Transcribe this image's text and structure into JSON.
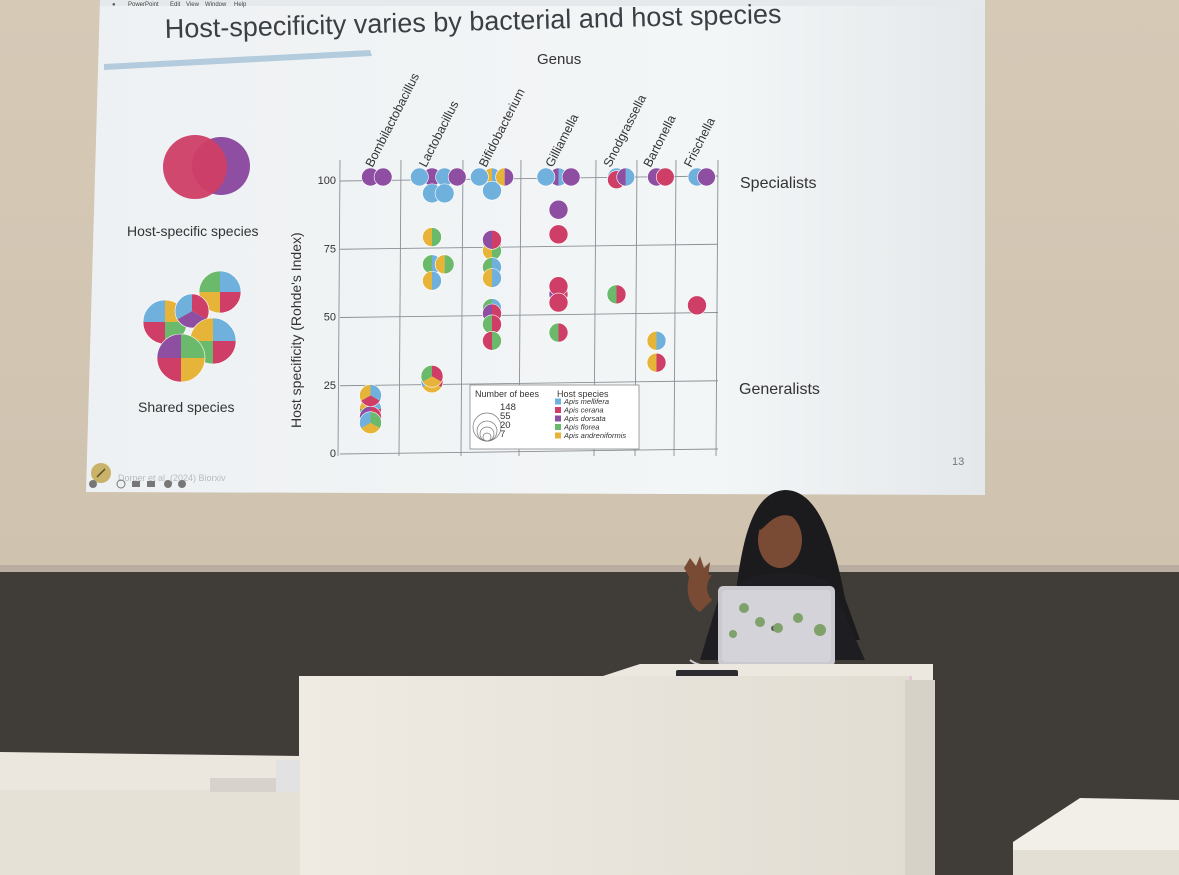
{
  "menubar": {
    "app": "PowerPoint",
    "items": [
      "Edit",
      "View",
      "Window",
      "Help"
    ]
  },
  "slide": {
    "title": "Host-specificity varies by bacterial and host species",
    "genus_heading": "Genus",
    "left_panel": {
      "host_specific_label": "Host-specific species",
      "shared_label": "Shared species"
    },
    "right_labels": {
      "specialists": "Specialists",
      "generalists": "Generalists"
    },
    "citation": "Dorper et al. (2024) Biorxiv",
    "slide_number": "13",
    "toolbar_icons": [
      "back-icon",
      "search-icon",
      "grid-icon",
      "camera-icon",
      "more-icon",
      "forward-icon"
    ]
  },
  "chart_data": {
    "type": "scatter",
    "ylabel": "Host specificity (Rohde's Index)",
    "xlabel": "Genus",
    "ylim": [
      0,
      100
    ],
    "yticks": [
      "0",
      "25",
      "50",
      "75",
      "100"
    ],
    "categories": [
      "Bombilactobacillus",
      "Lactobacillus",
      "Bifidobacterium",
      "Gilliamella",
      "Snodgrassella",
      "Bartonella",
      "Frischella"
    ],
    "legend": {
      "size_title": "Number of bees",
      "size_values": [
        "148",
        "55",
        "20",
        "7"
      ],
      "color_title": "Host species",
      "hosts": [
        {
          "name": "Apis mellifera",
          "color": "#6fb0dc"
        },
        {
          "name": "Apis cerana",
          "color": "#cf3e66"
        },
        {
          "name": "Apis dorsata",
          "color": "#8e4fa3"
        },
        {
          "name": "Apis florea",
          "color": "#6bb96a"
        },
        {
          "name": "Apis andreniformis",
          "color": "#e7b43a"
        }
      ]
    },
    "points": [
      {
        "genus": "Bombilactobacillus",
        "y": 100,
        "colors": [
          "#8e4fa3"
        ]
      },
      {
        "genus": "Bombilactobacillus",
        "y": 100,
        "colors": [
          "#8e4fa3"
        ]
      },
      {
        "genus": "Bombilactobacillus",
        "y": 15,
        "colors": [
          "#6fb0dc",
          "#cf3e66",
          "#6bb96a",
          "#e7b43a"
        ]
      },
      {
        "genus": "Bombilactobacillus",
        "y": 20,
        "colors": [
          "#6fb0dc",
          "#cf3e66",
          "#e7b43a"
        ]
      },
      {
        "genus": "Bombilactobacillus",
        "y": 12,
        "colors": [
          "#cf3e66",
          "#6bb96a",
          "#8e4fa3"
        ]
      },
      {
        "genus": "Bombilactobacillus",
        "y": 10,
        "colors": [
          "#6bb96a",
          "#e7b43a",
          "#6fb0dc"
        ]
      },
      {
        "genus": "Lactobacillus",
        "y": 100,
        "colors": [
          "#8e4fa3"
        ]
      },
      {
        "genus": "Lactobacillus",
        "y": 100,
        "colors": [
          "#6fb0dc"
        ]
      },
      {
        "genus": "Lactobacillus",
        "y": 100,
        "colors": [
          "#6fb0dc"
        ]
      },
      {
        "genus": "Lactobacillus",
        "y": 100,
        "colors": [
          "#8e4fa3"
        ]
      },
      {
        "genus": "Lactobacillus",
        "y": 94,
        "colors": [
          "#6fb0dc"
        ]
      },
      {
        "genus": "Lactobacillus",
        "y": 94,
        "colors": [
          "#6fb0dc"
        ]
      },
      {
        "genus": "Lactobacillus",
        "y": 78,
        "colors": [
          "#6bb96a",
          "#e7b43a"
        ]
      },
      {
        "genus": "Lactobacillus",
        "y": 68,
        "colors": [
          "#6fb0dc",
          "#6bb96a"
        ]
      },
      {
        "genus": "Lactobacillus",
        "y": 68,
        "colors": [
          "#6bb96a",
          "#e7b43a"
        ]
      },
      {
        "genus": "Lactobacillus",
        "y": 62,
        "colors": [
          "#6fb0dc",
          "#e7b43a"
        ]
      },
      {
        "genus": "Lactobacillus",
        "y": 25,
        "colors": [
          "#cf3e66",
          "#e7b43a",
          "#6fb0dc"
        ]
      },
      {
        "genus": "Lactobacillus",
        "y": 27,
        "colors": [
          "#cf3e66",
          "#e7b43a",
          "#6bb96a"
        ]
      },
      {
        "genus": "Bifidobacterium",
        "y": 100,
        "colors": [
          "#6fb0dc",
          "#e7b43a"
        ]
      },
      {
        "genus": "Bifidobacterium",
        "y": 100,
        "colors": [
          "#8e4fa3",
          "#e7b43a"
        ]
      },
      {
        "genus": "Bifidobacterium",
        "y": 100,
        "colors": [
          "#6fb0dc"
        ]
      },
      {
        "genus": "Bifidobacterium",
        "y": 95,
        "colors": [
          "#6fb0dc"
        ]
      },
      {
        "genus": "Bifidobacterium",
        "y": 76,
        "colors": [
          "#cf3e66",
          "#6bb96a"
        ]
      },
      {
        "genus": "Bifidobacterium",
        "y": 73,
        "colors": [
          "#6bb96a",
          "#e7b43a"
        ]
      },
      {
        "genus": "Bifidobacterium",
        "y": 77,
        "colors": [
          "#cf3e66",
          "#8e4fa3"
        ]
      },
      {
        "genus": "Bifidobacterium",
        "y": 67,
        "colors": [
          "#6fb0dc",
          "#6bb96a"
        ]
      },
      {
        "genus": "Bifidobacterium",
        "y": 63,
        "colors": [
          "#6fb0dc",
          "#e7b43a"
        ]
      },
      {
        "genus": "Bifidobacterium",
        "y": 52,
        "colors": [
          "#6fb0dc",
          "#6bb96a"
        ]
      },
      {
        "genus": "Bifidobacterium",
        "y": 50,
        "colors": [
          "#cf3e66",
          "#8e4fa3"
        ]
      },
      {
        "genus": "Bifidobacterium",
        "y": 46,
        "colors": [
          "#cf3e66",
          "#6bb96a"
        ]
      },
      {
        "genus": "Bifidobacterium",
        "y": 40,
        "colors": [
          "#6bb96a",
          "#cf3e66"
        ]
      },
      {
        "genus": "Gilliamella",
        "y": 100,
        "colors": [
          "#6fb0dc",
          "#8e4fa3"
        ]
      },
      {
        "genus": "Gilliamella",
        "y": 100,
        "colors": [
          "#8e4fa3"
        ]
      },
      {
        "genus": "Gilliamella",
        "y": 100,
        "colors": [
          "#6fb0dc"
        ]
      },
      {
        "genus": "Gilliamella",
        "y": 88,
        "colors": [
          "#8e4fa3"
        ]
      },
      {
        "genus": "Gilliamella",
        "y": 79,
        "colors": [
          "#cf3e66"
        ]
      },
      {
        "genus": "Gilliamella",
        "y": 57,
        "colors": [
          "#cf3e66",
          "#8e4fa3"
        ]
      },
      {
        "genus": "Gilliamella",
        "y": 60,
        "colors": [
          "#cf3e66"
        ]
      },
      {
        "genus": "Gilliamella",
        "y": 54,
        "colors": [
          "#cf3e66"
        ]
      },
      {
        "genus": "Gilliamella",
        "y": 43,
        "colors": [
          "#cf3e66",
          "#6bb96a"
        ]
      },
      {
        "genus": "Snodgrassella",
        "y": 100,
        "colors": [
          "#6fb0dc"
        ]
      },
      {
        "genus": "Snodgrassella",
        "y": 99,
        "colors": [
          "#cf3e66"
        ]
      },
      {
        "genus": "Snodgrassella",
        "y": 100,
        "colors": [
          "#6fb0dc",
          "#8e4fa3"
        ]
      },
      {
        "genus": "Snodgrassella",
        "y": 57,
        "colors": [
          "#cf3e66",
          "#6bb96a"
        ]
      },
      {
        "genus": "Bartonella",
        "y": 100,
        "colors": [
          "#8e4fa3"
        ]
      },
      {
        "genus": "Bartonella",
        "y": 100,
        "colors": [
          "#cf3e66"
        ]
      },
      {
        "genus": "Bartonella",
        "y": 40,
        "colors": [
          "#6fb0dc",
          "#e7b43a"
        ]
      },
      {
        "genus": "Bartonella",
        "y": 32,
        "colors": [
          "#cf3e66",
          "#e7b43a"
        ]
      },
      {
        "genus": "Frischella",
        "y": 100,
        "colors": [
          "#6fb0dc"
        ]
      },
      {
        "genus": "Frischella",
        "y": 100,
        "colors": [
          "#8e4fa3"
        ]
      },
      {
        "genus": "Frischella",
        "y": 53,
        "colors": [
          "#cf3e66"
        ]
      }
    ]
  },
  "colors": {
    "wall": "#d8cdbb",
    "screen": "#f1f4f6",
    "panel": "#403d39",
    "desk": "#f1ede4",
    "title_underline": "#a8c4d8",
    "laptop": "#c9c9cf"
  }
}
